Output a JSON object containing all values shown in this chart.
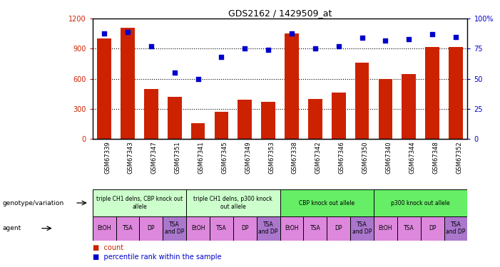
{
  "title": "GDS2162 / 1429509_at",
  "samples": [
    "GSM67339",
    "GSM67343",
    "GSM67347",
    "GSM67351",
    "GSM67341",
    "GSM67345",
    "GSM67349",
    "GSM67353",
    "GSM67338",
    "GSM67342",
    "GSM67346",
    "GSM67350",
    "GSM67340",
    "GSM67344",
    "GSM67348",
    "GSM67352"
  ],
  "counts": [
    1000,
    1110,
    500,
    420,
    160,
    270,
    390,
    370,
    1050,
    400,
    460,
    760,
    600,
    650,
    920,
    920
  ],
  "percentiles": [
    88,
    89,
    77,
    55,
    50,
    68,
    75,
    74,
    88,
    75,
    77,
    84,
    82,
    83,
    87,
    85
  ],
  "bar_color": "#cc2200",
  "dot_color": "#0000cc",
  "ylim_left": [
    0,
    1200
  ],
  "ylim_right": [
    0,
    100
  ],
  "yticks_left": [
    0,
    300,
    600,
    900,
    1200
  ],
  "yticks_right": [
    0,
    25,
    50,
    75,
    100
  ],
  "ytick_labels_right": [
    "0",
    "25",
    "50",
    "75",
    "100%"
  ],
  "grid_lines": [
    300,
    600,
    900
  ],
  "genotype_groups": [
    {
      "label": "triple CH1 delns, CBP knock out\nallele",
      "start": 0,
      "end": 4,
      "color": "#ccffcc"
    },
    {
      "label": "triple CH1 delns, p300 knock\nout allele",
      "start": 4,
      "end": 8,
      "color": "#ccffcc"
    },
    {
      "label": "CBP knock out allele",
      "start": 8,
      "end": 12,
      "color": "#66ee66"
    },
    {
      "label": "p300 knock out allele",
      "start": 12,
      "end": 16,
      "color": "#66ee66"
    }
  ],
  "agent_labels": [
    "EtOH",
    "TSA",
    "DP",
    "TSA\nand DP"
  ],
  "label_geno": "genotype/variation",
  "label_agent": "agent",
  "legend_items": [
    {
      "color": "#cc2200",
      "label": "count"
    },
    {
      "color": "#0000cc",
      "label": "percentile rank within the sample"
    }
  ]
}
